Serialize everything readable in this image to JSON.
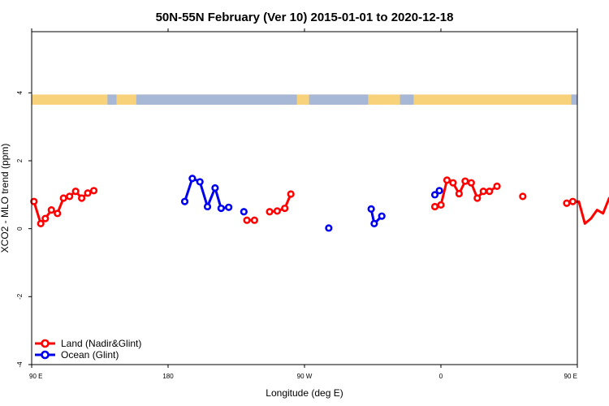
{
  "chart_data": {
    "type": "line",
    "title": "50N-55N February (Ver 10)   2015-01-01 to 2020-12-18",
    "xlabel": "Longitude (deg E)",
    "ylabel": "XCO2 - MLO trend (ppm)",
    "xlim": [
      90,
      450
    ],
    "ylim": [
      -4,
      5.8
    ],
    "x_ticks": [
      {
        "value": 90,
        "label": "90 E"
      },
      {
        "value": 180,
        "label": "180"
      },
      {
        "value": 270,
        "label": "90 W"
      },
      {
        "value": 360,
        "label": "0"
      },
      {
        "value": 450,
        "label": "90 E"
      }
    ],
    "x_ticks_top": [
      90,
      180,
      270,
      360,
      450
    ],
    "y_ticks": [
      {
        "value": -4,
        "label": "-4"
      },
      {
        "value": -2,
        "label": "-2"
      },
      {
        "value": 0,
        "label": "0"
      },
      {
        "value": 2,
        "label": "2"
      },
      {
        "value": 4,
        "label": "4"
      }
    ],
    "land_sea_band": {
      "y_range": [
        3.65,
        3.95
      ],
      "land_color": "#f8d27a",
      "ocean_color": "#a7b8d6",
      "ocean_x_ranges": [
        [
          140,
          146
        ],
        [
          159,
          265
        ],
        [
          273,
          312
        ],
        [
          333,
          342
        ],
        [
          446,
          450
        ]
      ]
    },
    "series": [
      {
        "name": "Land (Nadir&Glint)",
        "color": "#ff0000",
        "segments": [
          [
            [
              91.5,
              0.8
            ],
            [
              96,
              0.15
            ],
            [
              99,
              0.3
            ],
            [
              103,
              0.55
            ],
            [
              107,
              0.45
            ],
            [
              111,
              0.9
            ],
            [
              115,
              0.95
            ],
            [
              119,
              1.1
            ],
            [
              123,
              0.9
            ],
            [
              127,
              1.05
            ],
            [
              131,
              1.12
            ]
          ],
          [
            [
              232,
              0.25
            ],
            [
              237,
              0.25
            ]
          ],
          [
            [
              247,
              0.5
            ],
            [
              252,
              0.52
            ],
            [
              257,
              0.6
            ],
            [
              261,
              1.02
            ]
          ],
          [
            [
              356,
              0.65
            ],
            [
              360,
              0.7
            ],
            [
              364,
              1.43
            ],
            [
              368,
              1.35
            ],
            [
              372,
              1.03
            ],
            [
              376,
              1.4
            ],
            [
              380,
              1.35
            ],
            [
              384,
              0.9
            ],
            [
              388,
              1.1
            ],
            [
              392,
              1.1
            ],
            [
              397,
              1.25
            ]
          ],
          [
            [
              414,
              0.95
            ]
          ],
          [
            [
              443,
              0.75
            ],
            [
              447,
              0.8
            ],
            [
              451,
              0.8
            ],
            [
              455,
              0.15
            ],
            [
              459,
              0.3
            ],
            [
              463,
              0.55
            ],
            [
              467,
              0.45
            ],
            [
              471,
              0.9
            ],
            [
              475,
              0.95
            ],
            [
              479,
              1.1
            ],
            [
              483,
              0.9
            ],
            [
              487,
              1.05
            ],
            [
              491,
              1.12
            ]
          ]
        ]
      },
      {
        "name": "Ocean (Glint)",
        "color": "#0000ee",
        "segments": [
          [
            [
              191,
              0.8
            ],
            [
              196,
              1.48
            ],
            [
              201,
              1.38
            ],
            [
              206,
              0.65
            ],
            [
              211,
              1.2
            ],
            [
              215,
              0.6
            ],
            [
              220,
              0.63
            ]
          ],
          [
            [
              230,
              0.5
            ]
          ],
          [
            [
              286,
              0.02
            ]
          ],
          [
            [
              314,
              0.58
            ],
            [
              316,
              0.15
            ],
            [
              321,
              0.37
            ]
          ],
          [
            [
              356,
              1.0
            ],
            [
              359,
              1.12
            ]
          ]
        ]
      }
    ],
    "legend": {
      "position": "bottom-left",
      "entries": [
        "Land (Nadir&Glint)",
        "Ocean (Glint)"
      ]
    },
    "grid": false
  }
}
